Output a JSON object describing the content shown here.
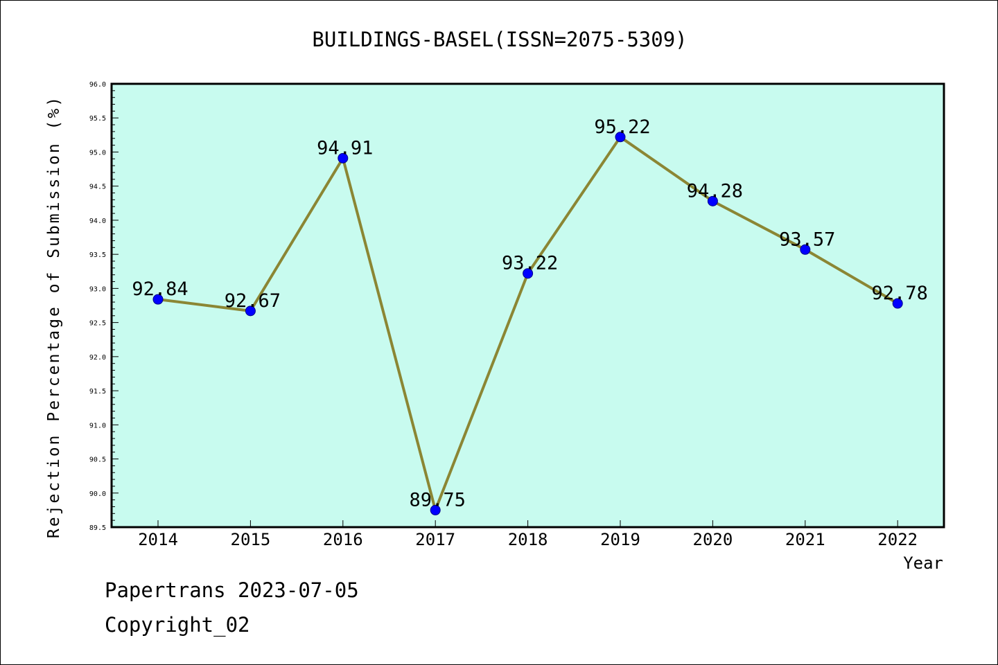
{
  "chart_data": {
    "type": "line",
    "title": "BUILDINGS-BASEL(ISSN=2075-5309)",
    "xlabel": "Year",
    "ylabel": "Rejection Percentage of Submission (%)",
    "categories": [
      "2014",
      "2015",
      "2016",
      "2017",
      "2018",
      "2019",
      "2020",
      "2021",
      "2022"
    ],
    "values": [
      92.84,
      92.67,
      94.91,
      89.75,
      93.22,
      95.22,
      94.28,
      93.57,
      92.78
    ],
    "data_labels": [
      "92.84",
      "92.67",
      "94.91",
      "89.75",
      "93.22",
      "95.22",
      "94.28",
      "93.57",
      "92.78"
    ],
    "ylim": [
      89.5,
      96.0
    ],
    "yticks": [
      "89.5",
      "90.0",
      "90.5",
      "91.0",
      "91.5",
      "92.0",
      "92.5",
      "93.0",
      "93.5",
      "94.0",
      "94.5",
      "95.0",
      "95.5",
      "96.0"
    ],
    "grid": false,
    "legend": "none",
    "colors": {
      "plot_background": "#c8fbef",
      "line": "#8b8634",
      "marker": "#0000ff",
      "frame": "#000000"
    }
  },
  "footer": {
    "line1": "Papertrans 2023-07-05",
    "line2": "Copyright_02"
  }
}
